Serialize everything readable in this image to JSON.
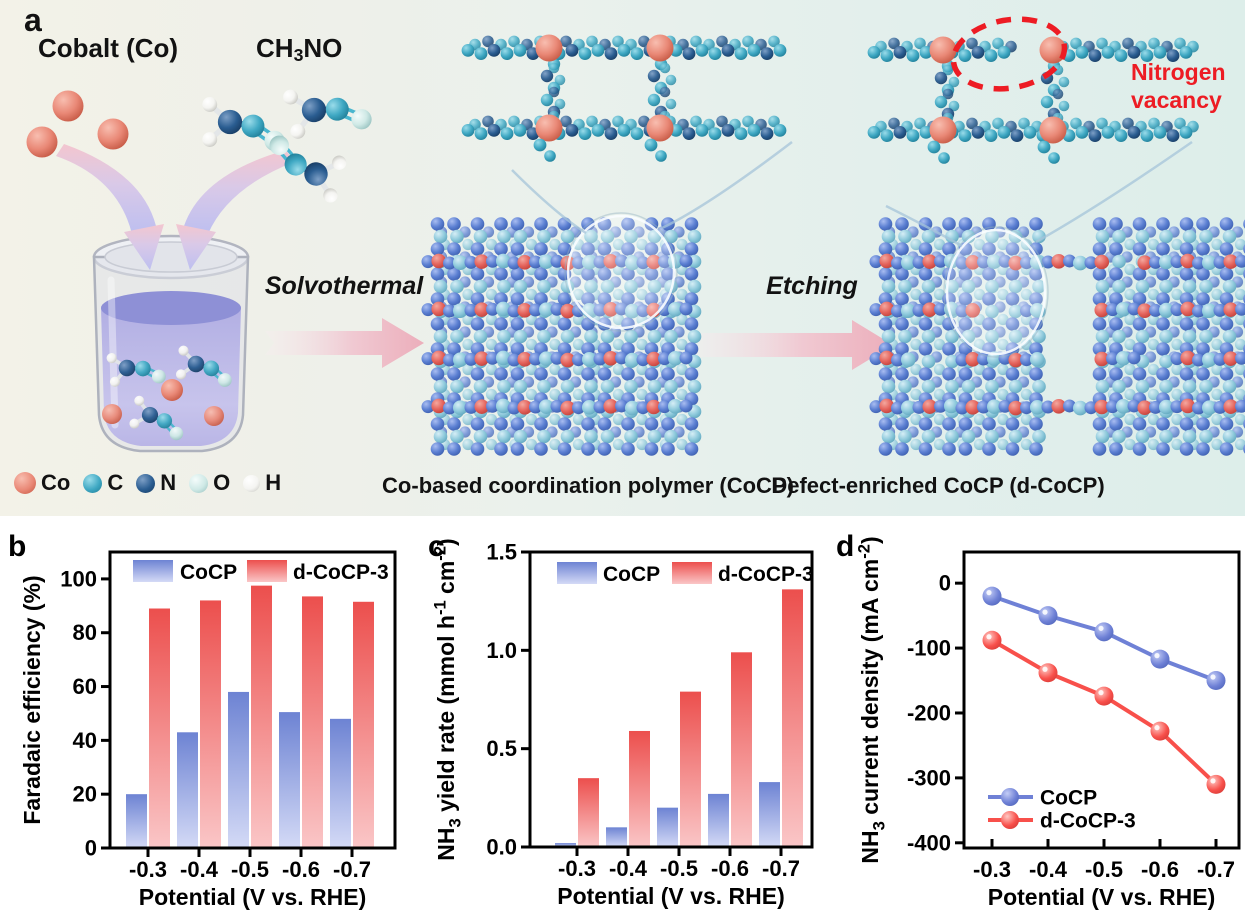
{
  "panel_a": {
    "label": "a",
    "reactant_co_label": "Cobalt (Co)",
    "reactant_ch3no_segments": [
      {
        "t": "CH"
      },
      {
        "t": "3",
        "sub": true
      },
      {
        "t": "NO"
      }
    ],
    "step1_label": "Solvothermal",
    "step2_label": "Etching",
    "vacancy_lines": [
      "Nitrogen",
      "vacancy"
    ],
    "caption_cocp": "Co-based coordination polymer (CoCP)",
    "caption_dcocp": "Defect-enriched CoCP (d-CoCP)",
    "atom_legend": [
      {
        "label": "Co",
        "color": "#e98876",
        "light": "#f8beb0",
        "dark": "#c2543f",
        "size": 22
      },
      {
        "label": "C",
        "color": "#3fa8c3",
        "light": "#9adcea",
        "dark": "#1d7a94",
        "size": 19
      },
      {
        "label": "N",
        "color": "#2a5d91",
        "light": "#7d9fc6",
        "dark": "#16395f",
        "size": 19
      },
      {
        "label": "O",
        "color": "#cfe9e6",
        "light": "#f4fcfb",
        "dark": "#93bfbd",
        "size": 19
      },
      {
        "label": "H",
        "color": "#f4f4f1",
        "light": "#ffffff",
        "dark": "#c2c2bc",
        "size": 17
      }
    ]
  },
  "chart_data": [
    {
      "id": "b",
      "panel_label": "b",
      "type": "bar",
      "categories": [
        "-0.3",
        "-0.4",
        "-0.5",
        "-0.6",
        "-0.7"
      ],
      "series": [
        {
          "name": "CoCP",
          "color_key": "blue",
          "values": [
            20,
            43,
            58,
            50.5,
            48
          ]
        },
        {
          "name": "d-CoCP-3",
          "color_key": "red",
          "values": [
            89,
            92,
            97.5,
            93.5,
            91.5
          ]
        }
      ],
      "xlabel": "Potential (V vs. RHE)",
      "ylabel_segments": [
        {
          "t": "Faradaic efficiency (%)"
        }
      ],
      "yticks": [
        0,
        20,
        40,
        60,
        80,
        100
      ],
      "ytick_labels": [
        "0",
        "20",
        "40",
        "60",
        "80",
        "100"
      ],
      "ylim": [
        0,
        110
      ],
      "legend_position": "top-inside",
      "grid": false
    },
    {
      "id": "c",
      "panel_label": "c",
      "type": "bar",
      "categories": [
        "-0.3",
        "-0.4",
        "-0.5",
        "-0.6",
        "-0.7"
      ],
      "series": [
        {
          "name": "CoCP",
          "color_key": "blue",
          "values": [
            0.02,
            0.1,
            0.2,
            0.27,
            0.33
          ]
        },
        {
          "name": "d-CoCP-3",
          "color_key": "red",
          "values": [
            0.35,
            0.59,
            0.79,
            0.99,
            1.31
          ]
        }
      ],
      "xlabel": "Potential (V vs. RHE)",
      "ylabel_segments": [
        {
          "t": "NH"
        },
        {
          "t": "3",
          "sub": true
        },
        {
          "t": " yield rate (mmol h"
        },
        {
          "t": "-1",
          "sup": true
        },
        {
          "t": " cm"
        },
        {
          "t": "-2",
          "sup": true
        },
        {
          "t": ")"
        }
      ],
      "yticks": [
        0,
        0.5,
        1.0,
        1.5
      ],
      "ytick_labels": [
        "0.0",
        "0.5",
        "1.0",
        "1.5"
      ],
      "ylim": [
        0,
        1.5
      ],
      "legend_position": "top-inside",
      "grid": false
    },
    {
      "id": "d",
      "panel_label": "d",
      "type": "line",
      "categories": [
        "-0.3",
        "-0.4",
        "-0.5",
        "-0.6",
        "-0.7"
      ],
      "series": [
        {
          "name": "CoCP",
          "color_key": "blue",
          "values": [
            -20,
            -50,
            -75,
            -117,
            -150
          ]
        },
        {
          "name": "d-CoCP-3",
          "color_key": "red",
          "values": [
            -88,
            -138,
            -174,
            -228,
            -310
          ]
        }
      ],
      "xlabel": "Potential (V vs. RHE)",
      "ylabel_segments": [
        {
          "t": "NH"
        },
        {
          "t": "3",
          "sub": true
        },
        {
          "t": " current density (mA cm"
        },
        {
          "t": "-2",
          "sup": true
        },
        {
          "t": ")"
        }
      ],
      "yticks": [
        0,
        -100,
        -200,
        -300,
        -400
      ],
      "ytick_labels": [
        "0",
        "-100",
        "-200",
        "-300",
        "-400"
      ],
      "ylim": [
        -408,
        48
      ],
      "legend_position": "bottom-left-inside",
      "grid": false
    }
  ],
  "colors": {
    "bar_blue_top": "#6d83d3",
    "bar_blue_bottom": "#d4daf6",
    "bar_red_top": "#ec4f4d",
    "bar_red_bottom": "#fac6c7",
    "line_blue": "#6f81d6",
    "line_red": "#f8504b",
    "marker_blue_light": "#c4cdf6",
    "marker_blue_dark": "#4d63b8",
    "marker_red_light": "#ffc9c4",
    "marker_red_dark": "#d23834",
    "axis": "#000000",
    "vacancy_red": "#ed1c24",
    "step_arrow_pink": "#ecaebb",
    "conv_arrow_pink": "#f3c6cf",
    "conv_arrow_lavender": "#bdbff0",
    "liquid_purple": "#8e90d6"
  }
}
